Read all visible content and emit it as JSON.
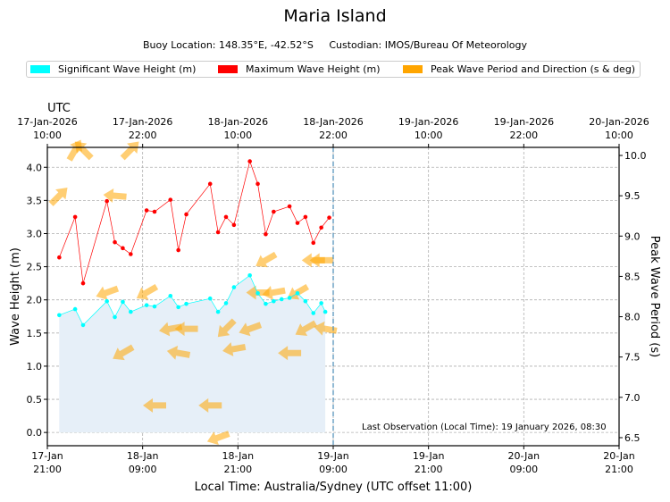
{
  "title": "Maria Island",
  "subtitle": "Buoy Location: 148.35°E, -42.52°S     Custodian: IMOS/Bureau Of Meteorology",
  "legend": [
    {
      "label": "Significant Wave Height (m)",
      "color": "#00ffff"
    },
    {
      "label": "Maximum Wave Height (m)",
      "color": "#ff0000"
    },
    {
      "label": "Peak Wave Period and Direction (s & deg)",
      "color": "#ffa500"
    }
  ],
  "last_observation": "Last Observation (Local Time): 19 January 2026, 08:30",
  "chart_data": {
    "type": "line",
    "x_unit": "hours since 17-Jan 21:00 local",
    "xlim": [
      0,
      72
    ],
    "ylim": [
      -0.2,
      4.3
    ],
    "y2lim": [
      6.4,
      10.1
    ],
    "xlabel": "Local Time: Australia/Sydney (UTC offset 11:00)",
    "ylabel": "Wave Height (m)",
    "y2label": "Peak Wave Period (s)",
    "top_axis_label": "UTC",
    "x_ticks": [
      0,
      12,
      24,
      36,
      48,
      60,
      72
    ],
    "bottom_tick_labels": [
      "17-Jan\n21:00",
      "18-Jan\n09:00",
      "18-Jan\n21:00",
      "19-Jan\n09:00",
      "19-Jan\n21:00",
      "20-Jan\n09:00",
      "20-Jan\n21:00"
    ],
    "top_tick_labels": [
      "17-Jan-2026\n10:00",
      "17-Jan-2026\n22:00",
      "18-Jan-2026\n10:00",
      "18-Jan-2026\n22:00",
      "19-Jan-2026\n10:00",
      "19-Jan-2026\n22:00",
      "20-Jan-2026\n10:00"
    ],
    "y_ticks": [
      0.0,
      0.5,
      1.0,
      1.5,
      2.0,
      2.5,
      3.0,
      3.5,
      4.0
    ],
    "y2_ticks": [
      6.5,
      7.0,
      7.5,
      8.0,
      8.5,
      9.0,
      9.5,
      10.0
    ],
    "last_obs_x": 36,
    "series": [
      {
        "name": "Significant Wave Height (m)",
        "color": "#00ffff",
        "x": [
          1.5,
          3.5,
          4.5,
          7.5,
          8.5,
          9.5,
          10.5,
          12.5,
          13.5,
          15.5,
          16.5,
          17.5,
          20.5,
          21.5,
          22.5,
          23.5,
          25.5,
          26.5,
          27.5,
          28.5,
          29.5,
          30.5,
          31.5,
          32.5,
          33.5,
          34.5,
          35.0
        ],
        "values": [
          1.77,
          1.86,
          1.62,
          1.98,
          1.74,
          1.97,
          1.82,
          1.92,
          1.9,
          2.06,
          1.89,
          1.94,
          2.02,
          1.82,
          1.95,
          2.19,
          2.37,
          2.1,
          1.94,
          1.98,
          2.01,
          2.03,
          2.1,
          1.98,
          1.8,
          1.95,
          1.82
        ]
      },
      {
        "name": "Maximum Wave Height (m)",
        "color": "#ff0000",
        "x": [
          1.5,
          3.5,
          4.5,
          7.5,
          8.5,
          9.5,
          10.5,
          12.5,
          13.5,
          15.5,
          16.5,
          17.5,
          20.5,
          21.5,
          22.5,
          23.5,
          25.5,
          26.5,
          27.5,
          28.5,
          30.5,
          31.5,
          32.5,
          33.5,
          34.5,
          35.5
        ],
        "values": [
          2.64,
          3.25,
          2.25,
          3.49,
          2.87,
          2.78,
          2.69,
          3.35,
          3.33,
          3.51,
          2.75,
          3.29,
          3.75,
          3.02,
          3.25,
          3.13,
          4.09,
          3.75,
          2.99,
          3.33,
          3.41,
          3.16,
          3.25,
          2.86,
          3.09,
          3.24
        ]
      }
    ],
    "peak_wave": {
      "name": "Peak Wave Period and Direction (s & deg)",
      "color": "#ffa500",
      "points": [
        {
          "x": 1.5,
          "period": 9.5,
          "direction": 225
        },
        {
          "x": 3.5,
          "period": 10.07,
          "direction": 210
        },
        {
          "x": 4.5,
          "period": 10.07,
          "direction": 135
        },
        {
          "x": 7.5,
          "period": 8.3,
          "direction": 70
        },
        {
          "x": 8.5,
          "period": 9.5,
          "direction": 95
        },
        {
          "x": 9.5,
          "period": 7.55,
          "direction": 60
        },
        {
          "x": 10.5,
          "period": 10.07,
          "direction": 225
        },
        {
          "x": 12.5,
          "period": 8.3,
          "direction": 60
        },
        {
          "x": 13.5,
          "period": 6.9,
          "direction": 90
        },
        {
          "x": 15.5,
          "period": 7.85,
          "direction": 80
        },
        {
          "x": 16.5,
          "period": 7.55,
          "direction": 100
        },
        {
          "x": 17.5,
          "period": 7.85,
          "direction": 90
        },
        {
          "x": 20.5,
          "period": 6.9,
          "direction": 90
        },
        {
          "x": 21.5,
          "period": 6.5,
          "direction": 70
        },
        {
          "x": 22.5,
          "period": 7.85,
          "direction": 45
        },
        {
          "x": 23.5,
          "period": 7.6,
          "direction": 80
        },
        {
          "x": 25.5,
          "period": 7.85,
          "direction": 70
        },
        {
          "x": 26.5,
          "period": 8.3,
          "direction": 90
        },
        {
          "x": 27.5,
          "period": 8.7,
          "direction": 60
        },
        {
          "x": 28.5,
          "period": 8.3,
          "direction": 80
        },
        {
          "x": 30.5,
          "period": 7.55,
          "direction": 90
        },
        {
          "x": 31.5,
          "period": 8.3,
          "direction": 60
        },
        {
          "x": 32.5,
          "period": 7.85,
          "direction": 60
        },
        {
          "x": 33.5,
          "period": 8.7,
          "direction": 90
        },
        {
          "x": 34.5,
          "period": 8.7,
          "direction": 90
        },
        {
          "x": 35.0,
          "period": 7.85,
          "direction": 100
        }
      ]
    }
  }
}
